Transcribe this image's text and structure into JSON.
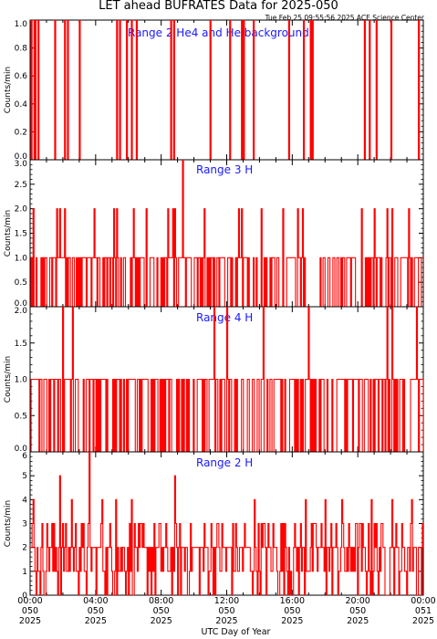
{
  "header": {
    "title": "LET ahead BUFRATES Data for 2025-050",
    "timestamp": "Tue Feb 25 09:55:56 2025 ACE Science Center"
  },
  "x_axis": {
    "label": "UTC Day of Year",
    "ticks": [
      {
        "time": "00:00",
        "doy": "050",
        "year": "2025"
      },
      {
        "time": "04:00",
        "doy": "050",
        "year": "2025"
      },
      {
        "time": "08:00",
        "doy": "050",
        "year": "2025"
      },
      {
        "time": "12:00",
        "doy": "050",
        "year": "2025"
      },
      {
        "time": "16:00",
        "doy": "050",
        "year": "2025"
      },
      {
        "time": "20:00",
        "doy": "050",
        "year": "2025"
      },
      {
        "time": "00:00",
        "doy": "051",
        "year": "2025"
      }
    ]
  },
  "colors": {
    "trace": "#ff0000",
    "label": "#1a1aff",
    "axes": "#000000"
  },
  "chart_data": [
    {
      "type": "line",
      "title": "Range 2 He4 and He background",
      "ylabel": "Counts/min",
      "xlabel": "UTC Day of Year",
      "ylim": [
        0,
        1
      ],
      "yticks": [
        "0.0",
        "0.2",
        "0.4",
        "0.6",
        "0.8",
        "1.0"
      ],
      "x_unit": "hours since 2025-050 00:00",
      "spikes": [
        [
          0.0,
          1.0
        ],
        [
          0.1,
          1.0
        ],
        [
          0.2,
          1.0
        ],
        [
          0.3,
          1.0
        ],
        [
          0.45,
          1.0
        ],
        [
          1.5,
          1.0
        ],
        [
          2.1,
          1.0
        ],
        [
          2.3,
          1.0
        ],
        [
          3.0,
          1.0
        ],
        [
          5.3,
          1.0
        ],
        [
          5.45,
          1.0
        ],
        [
          5.9,
          1.0
        ],
        [
          6.2,
          1.0
        ],
        [
          6.5,
          1.0
        ],
        [
          8.6,
          1.0
        ],
        [
          8.75,
          1.0
        ],
        [
          11.0,
          1.0
        ],
        [
          12.2,
          1.0
        ],
        [
          12.9,
          1.0
        ],
        [
          13.0,
          1.0
        ],
        [
          13.6,
          1.0
        ],
        [
          15.8,
          1.0
        ],
        [
          16.7,
          1.0
        ],
        [
          17.1,
          1.0
        ],
        [
          17.2,
          1.0
        ],
        [
          20.4,
          1.0
        ],
        [
          20.7,
          1.0
        ],
        [
          21.1,
          1.0
        ],
        [
          22.0,
          1.0
        ],
        [
          23.7,
          1.0
        ]
      ]
    },
    {
      "type": "line",
      "title": "Range 3 H",
      "ylabel": "Counts/min",
      "ylim": [
        0,
        3
      ],
      "yticks": [
        "0.0",
        "0.5",
        "1.0",
        "1.5",
        "2.0",
        "2.5",
        "3.0"
      ],
      "peaks_at_2": [
        0.2,
        1.6,
        1.8,
        2.1,
        3.9,
        5.1,
        5.3,
        6.3,
        7.1,
        8.4,
        8.7,
        8.8,
        10.6,
        12.7,
        12.9,
        14.1,
        15.4,
        16.3,
        16.6,
        20.2,
        21.0,
        21.8,
        22.1,
        23.1
      ],
      "peaks_at_3": [
        9.3
      ],
      "baseline": 1,
      "gap_ranges": [
        [
          16.8,
          17.6
        ]
      ]
    },
    {
      "type": "line",
      "title": "Range 4 H",
      "ylabel": "Counts/min",
      "ylim": [
        0,
        2
      ],
      "yticks": [
        "0.0",
        "0.5",
        "1.0",
        "1.5",
        "2.0"
      ],
      "peaks_at_2": [
        2.0,
        2.6,
        11.2,
        12.0,
        14.2,
        17.0,
        21.8,
        22.1,
        23.6
      ],
      "baseline": 1
    },
    {
      "type": "line",
      "title": "Range 2 H",
      "ylabel": "Counts/min",
      "ylim": [
        0,
        6
      ],
      "yticks": [
        "0",
        "1",
        "2",
        "3",
        "4",
        "5",
        "6"
      ],
      "peaks": [
        [
          0.2,
          4
        ],
        [
          1.8,
          5
        ],
        [
          2.5,
          4
        ],
        [
          3.6,
          6
        ],
        [
          4.4,
          4
        ],
        [
          5.2,
          4
        ],
        [
          6.2,
          4
        ],
        [
          8.8,
          5
        ],
        [
          13.7,
          4
        ],
        [
          16.8,
          4
        ],
        [
          18.0,
          4
        ],
        [
          19.0,
          4
        ],
        [
          20.8,
          4
        ],
        [
          22.1,
          4
        ],
        [
          23.3,
          4
        ]
      ],
      "baseline": 2
    }
  ]
}
